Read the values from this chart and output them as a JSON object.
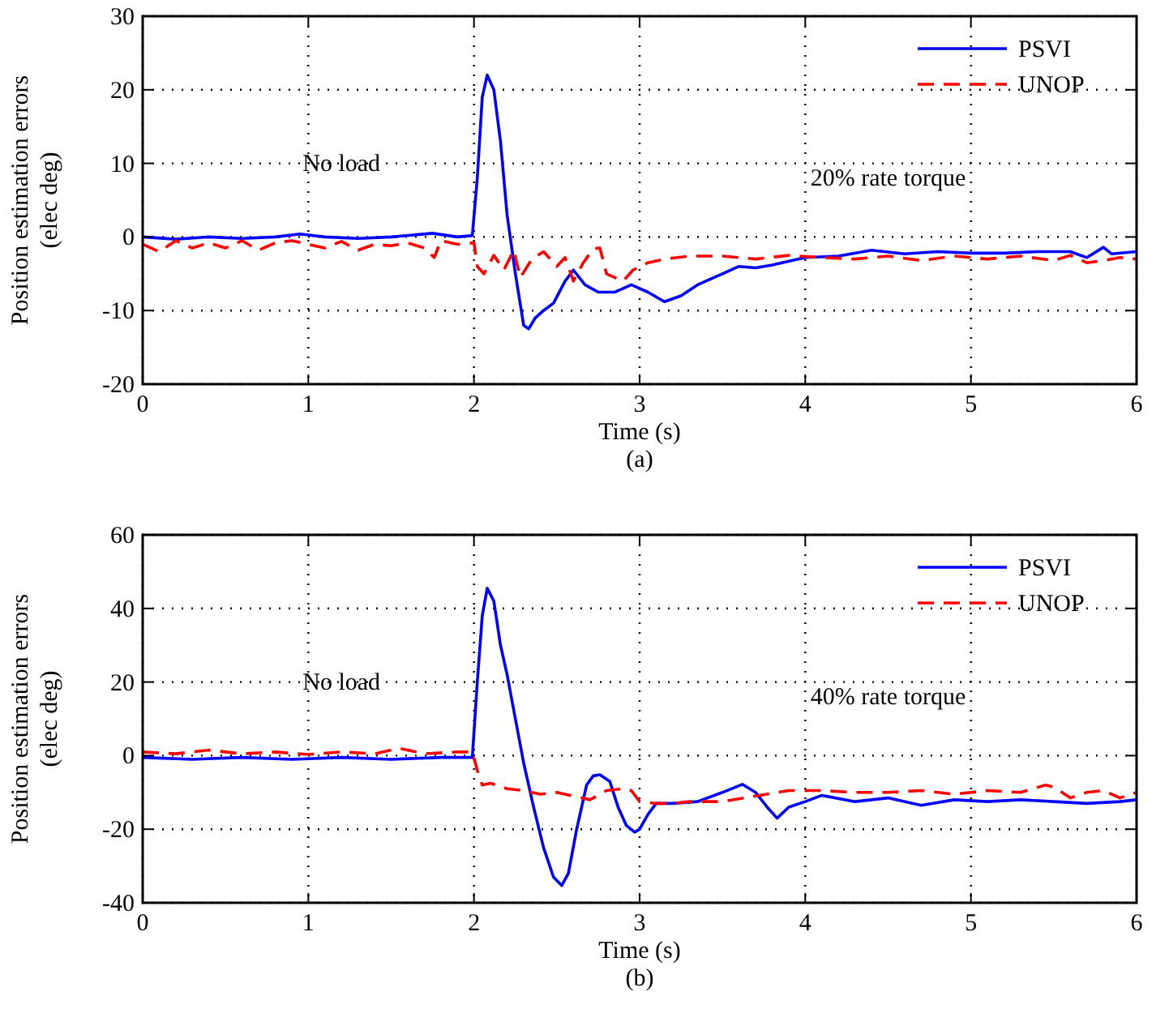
{
  "chart_data": [
    {
      "type": "line",
      "xlabel": "Time (s)",
      "ylabel": "Position estimation errors\n(elec deg)",
      "xlim": [
        0,
        6
      ],
      "ylim": [
        -20,
        30
      ],
      "xticks": [
        0,
        1,
        2,
        3,
        4,
        5,
        6
      ],
      "yticks": [
        -20,
        -10,
        0,
        10,
        20,
        30
      ],
      "grid": true,
      "legend": "top right",
      "annotations": [
        "No load",
        "20% rate torque",
        "(a)"
      ],
      "series": [
        {
          "name": "PSVI",
          "color": "#0000ff",
          "line_style": "solid",
          "x": [
            0,
            0.2,
            0.4,
            0.6,
            0.8,
            0.95,
            1.1,
            1.3,
            1.5,
            1.75,
            1.9,
            1.99,
            2.02,
            2.05,
            2.08,
            2.12,
            2.16,
            2.2,
            2.25,
            2.3,
            2.33,
            2.37,
            2.42,
            2.48,
            2.55,
            2.6,
            2.67,
            2.75,
            2.85,
            2.95,
            3.05,
            3.15,
            3.25,
            3.35,
            3.5,
            3.6,
            3.7,
            3.8,
            4.0,
            4.2,
            4.4,
            4.6,
            4.8,
            5.0,
            5.2,
            5.4,
            5.6,
            5.7,
            5.8,
            5.85,
            6.0
          ],
          "values": [
            0,
            -0.3,
            0,
            -0.2,
            0,
            0.4,
            0,
            -0.2,
            0,
            0.5,
            0,
            0.2,
            8,
            19,
            22,
            20,
            13,
            3,
            -5,
            -12,
            -12.5,
            -11,
            -10,
            -9,
            -6,
            -4.5,
            -6.5,
            -7.5,
            -7.5,
            -6.5,
            -7.5,
            -8.8,
            -8,
            -6.5,
            -5,
            -4,
            -4.2,
            -3.8,
            -2.8,
            -2.6,
            -1.8,
            -2.3,
            -2,
            -2.2,
            -2.2,
            -2,
            -2,
            -2.8,
            -1.4,
            -2.3,
            -2
          ]
        },
        {
          "name": "UNOP",
          "color": "#ff0000",
          "line_style": "dashed",
          "x": [
            0,
            0.1,
            0.2,
            0.3,
            0.4,
            0.5,
            0.6,
            0.7,
            0.8,
            0.9,
            1.0,
            1.1,
            1.2,
            1.3,
            1.4,
            1.5,
            1.6,
            1.7,
            1.76,
            1.8,
            1.9,
            2.0,
            2.02,
            2.06,
            2.12,
            2.18,
            2.24,
            2.28,
            2.35,
            2.42,
            2.5,
            2.55,
            2.6,
            2.66,
            2.72,
            2.76,
            2.8,
            2.85,
            2.9,
            2.96,
            3.05,
            3.15,
            3.3,
            3.5,
            3.7,
            3.9,
            4.1,
            4.3,
            4.5,
            4.7,
            4.9,
            5.1,
            5.3,
            5.5,
            5.6,
            5.7,
            5.8,
            5.9,
            6.0
          ],
          "values": [
            -1,
            -2,
            -0.5,
            -1.5,
            -0.8,
            -1.5,
            -0.5,
            -1.8,
            -0.8,
            -0.5,
            -1,
            -1.5,
            -0.6,
            -1.8,
            -1,
            -1.2,
            -0.8,
            -1.5,
            -2.8,
            -0.5,
            -1,
            -0.8,
            -4,
            -5,
            -2.5,
            -4.5,
            -1.8,
            -5.5,
            -3,
            -2,
            -4,
            -2.8,
            -6,
            -3.5,
            -1.6,
            -1.5,
            -5,
            -5.5,
            -6,
            -4.5,
            -3.5,
            -3,
            -2.6,
            -2.6,
            -3,
            -2.5,
            -2.8,
            -3,
            -2.6,
            -3.2,
            -2.6,
            -3,
            -2.6,
            -3.2,
            -2.5,
            -3.5,
            -3.2,
            -2.8,
            -3
          ]
        }
      ]
    },
    {
      "type": "line",
      "xlabel": "Time (s)",
      "ylabel": "Position estimation errors\n(elec deg)",
      "xlim": [
        0,
        6
      ],
      "ylim": [
        -40,
        60
      ],
      "xticks": [
        0,
        1,
        2,
        3,
        4,
        5,
        6
      ],
      "yticks": [
        -40,
        -20,
        0,
        20,
        40,
        60
      ],
      "grid": true,
      "legend": "top right",
      "annotations": [
        "No load",
        "40% rate torque",
        "(b)"
      ],
      "series": [
        {
          "name": "PSVI",
          "color": "#0000ff",
          "line_style": "solid",
          "x": [
            0,
            0.3,
            0.6,
            0.9,
            1.2,
            1.5,
            1.8,
            1.99,
            2.02,
            2.05,
            2.08,
            2.12,
            2.16,
            2.2,
            2.25,
            2.3,
            2.36,
            2.42,
            2.48,
            2.53,
            2.57,
            2.62,
            2.68,
            2.72,
            2.76,
            2.82,
            2.87,
            2.92,
            2.97,
            3.0,
            3.05,
            3.1,
            3.2,
            3.35,
            3.5,
            3.62,
            3.7,
            3.77,
            3.83,
            3.9,
            4.0,
            4.1,
            4.3,
            4.5,
            4.7,
            4.9,
            5.1,
            5.3,
            5.5,
            5.7,
            5.9,
            6.0
          ],
          "values": [
            -0.5,
            -1,
            -0.5,
            -1,
            -0.5,
            -1,
            -0.5,
            -0.5,
            20,
            38,
            45.5,
            42,
            30,
            22,
            10,
            -2,
            -14,
            -25,
            -33,
            -35.3,
            -32,
            -20,
            -8,
            -5.5,
            -5.2,
            -7,
            -14,
            -19,
            -20.8,
            -20,
            -16,
            -13,
            -13,
            -12.5,
            -10,
            -7.8,
            -10,
            -14,
            -17,
            -14,
            -12.5,
            -10.8,
            -12.5,
            -11.5,
            -13.5,
            -12,
            -12.5,
            -12,
            -12.5,
            -13,
            -12.5,
            -12
          ]
        },
        {
          "name": "UNOP",
          "color": "#ff0000",
          "line_style": "dashed",
          "x": [
            0,
            0.2,
            0.4,
            0.6,
            0.8,
            1.0,
            1.2,
            1.4,
            1.55,
            1.7,
            1.9,
            1.99,
            2.02,
            2.05,
            2.1,
            2.2,
            2.3,
            2.4,
            2.5,
            2.6,
            2.7,
            2.8,
            2.9,
            2.95,
            3.0,
            3.1,
            3.2,
            3.3,
            3.5,
            3.7,
            3.9,
            4.1,
            4.3,
            4.5,
            4.7,
            4.9,
            5.1,
            5.3,
            5.45,
            5.5,
            5.6,
            5.7,
            5.8,
            5.9,
            6.0
          ],
          "values": [
            1,
            0.5,
            1.5,
            0.5,
            1,
            0.3,
            1,
            0.5,
            2,
            0.5,
            1,
            1,
            -4,
            -8,
            -7.5,
            -9,
            -9.5,
            -10.5,
            -10,
            -11,
            -12,
            -9.5,
            -9,
            -9.5,
            -12.5,
            -13,
            -13,
            -12.5,
            -12.5,
            -11,
            -9.5,
            -9.5,
            -10,
            -10,
            -9.5,
            -10.5,
            -9.5,
            -10,
            -8,
            -8.5,
            -11.5,
            -10,
            -9.5,
            -11.5,
            -10
          ]
        }
      ]
    }
  ]
}
